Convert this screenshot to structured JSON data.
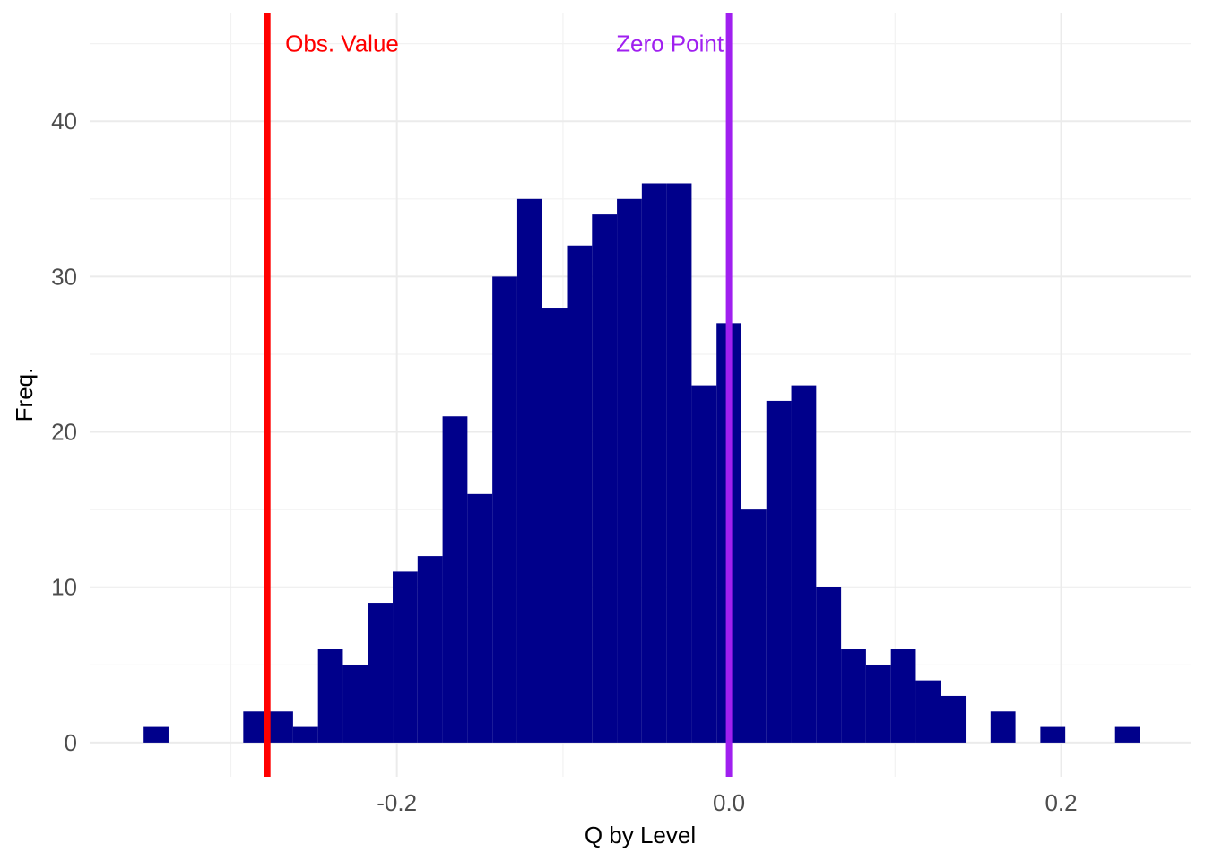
{
  "chart_data": {
    "type": "bar",
    "xlabel": "Q by Level",
    "ylabel": "Freq.",
    "xlim": [
      -0.385,
      0.278
    ],
    "ylim": [
      -2.2,
      47
    ],
    "x_ticks": [
      -0.2,
      0.0,
      0.2
    ],
    "x_tick_labels": [
      "-0.2",
      "0.0",
      "0.2"
    ],
    "y_ticks": [
      0,
      10,
      20,
      30,
      40
    ],
    "y_tick_labels": [
      "0",
      "10",
      "20",
      "30",
      "40"
    ],
    "bin_width": 0.015,
    "bins": [
      {
        "x": -0.345,
        "count": 1
      },
      {
        "x": -0.285,
        "count": 2
      },
      {
        "x": -0.27,
        "count": 2
      },
      {
        "x": -0.255,
        "count": 1
      },
      {
        "x": -0.24,
        "count": 6
      },
      {
        "x": -0.225,
        "count": 5
      },
      {
        "x": -0.21,
        "count": 9
      },
      {
        "x": -0.195,
        "count": 11
      },
      {
        "x": -0.18,
        "count": 12
      },
      {
        "x": -0.165,
        "count": 21
      },
      {
        "x": -0.15,
        "count": 16
      },
      {
        "x": -0.135,
        "count": 30
      },
      {
        "x": -0.12,
        "count": 35
      },
      {
        "x": -0.105,
        "count": 28
      },
      {
        "x": -0.09,
        "count": 32
      },
      {
        "x": -0.075,
        "count": 34
      },
      {
        "x": -0.06,
        "count": 35
      },
      {
        "x": -0.045,
        "count": 36
      },
      {
        "x": -0.03,
        "count": 36
      },
      {
        "x": -0.015,
        "count": 23
      },
      {
        "x": 0.0,
        "count": 27
      },
      {
        "x": 0.015,
        "count": 15
      },
      {
        "x": 0.03,
        "count": 22
      },
      {
        "x": 0.045,
        "count": 23
      },
      {
        "x": 0.06,
        "count": 10
      },
      {
        "x": 0.075,
        "count": 6
      },
      {
        "x": 0.09,
        "count": 5
      },
      {
        "x": 0.105,
        "count": 6
      },
      {
        "x": 0.12,
        "count": 4
      },
      {
        "x": 0.135,
        "count": 3
      },
      {
        "x": 0.165,
        "count": 2
      },
      {
        "x": 0.195,
        "count": 1
      },
      {
        "x": 0.24,
        "count": 1
      }
    ],
    "reference_lines": [
      {
        "label": "Obs. Value",
        "x": -0.278,
        "color": "#ff0000",
        "label_anchor": "start"
      },
      {
        "label": "Zero Point",
        "x": 0.0,
        "color": "#a020f0",
        "label_anchor": "end"
      }
    ],
    "annotation_y": 45,
    "bar_color": "#00008b",
    "grid": true,
    "legend": "none"
  }
}
